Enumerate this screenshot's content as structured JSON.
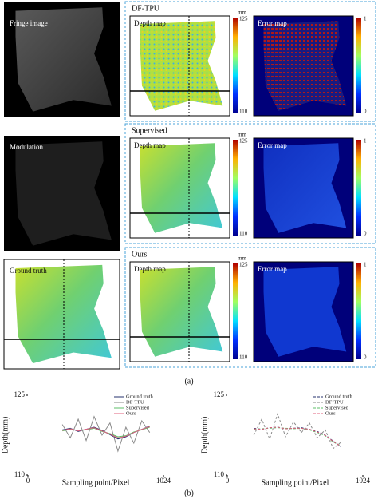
{
  "panel_a": {
    "caption": "(a)",
    "left_images": [
      {
        "label": "Fringe image"
      },
      {
        "label": "Modulation"
      },
      {
        "label": "Ground truth"
      }
    ],
    "methods": [
      {
        "title": "DF-TPU",
        "depth_label": "Depth map",
        "error_label": "Error map"
      },
      {
        "title": "Supervised",
        "depth_label": "Depth map",
        "error_label": "Error map"
      },
      {
        "title": "Ours",
        "depth_label": "Depth map",
        "error_label": "Error map"
      }
    ],
    "depth_colorbar": {
      "unit": "mm",
      "max": 125,
      "min": 110
    },
    "error_colorbar": {
      "max": 1,
      "min": 0
    }
  },
  "chart_data": [
    {
      "type": "line",
      "xlabel": "Sampling point/Pixel",
      "ylabel": "Depth(mm)",
      "x": [
        260,
        320,
        380,
        440,
        500,
        560,
        620,
        680,
        740,
        800,
        860,
        920
      ],
      "xlim": [
        0,
        1024
      ],
      "ylim": [
        110,
        125
      ],
      "xticks": [
        0,
        1024
      ],
      "yticks": [
        110,
        125
      ],
      "legend": "upper right",
      "series": [
        {
          "name": "Ground truth",
          "color": "#25306e",
          "linestyle": "solid",
          "values": [
            118.5,
            118.8,
            118.2,
            118.6,
            119.0,
            118.4,
            117.6,
            116.8,
            117.2,
            118.0,
            118.6,
            119.2
          ]
        },
        {
          "name": "DF-TPU",
          "color": "#8a8a8a",
          "linestyle": "solid",
          "values": [
            119.5,
            117.0,
            120.5,
            116.5,
            121.0,
            117.5,
            119.8,
            114.5,
            119.0,
            116.0,
            120.2,
            118.0
          ]
        },
        {
          "name": "Supervised",
          "color": "#5cbf6a",
          "linestyle": "solid",
          "values": [
            118.3,
            118.6,
            118.4,
            118.5,
            118.8,
            118.2,
            117.8,
            117.2,
            117.4,
            118.1,
            118.5,
            119.0
          ]
        },
        {
          "name": "Ours",
          "color": "#e0607e",
          "linestyle": "solid",
          "values": [
            118.4,
            118.7,
            118.3,
            118.6,
            118.9,
            118.3,
            117.7,
            117.0,
            117.3,
            118.0,
            118.6,
            119.1
          ]
        }
      ]
    },
    {
      "type": "line",
      "xlabel": "Sampling point/Pixel",
      "ylabel": "Depth(mm)",
      "x": [
        200,
        260,
        320,
        380,
        440,
        500,
        560,
        620,
        680,
        740,
        800,
        860
      ],
      "xlim": [
        0,
        1024
      ],
      "ylim": [
        110,
        125
      ],
      "xticks": [
        0,
        1024
      ],
      "yticks": [
        110,
        125
      ],
      "legend": "upper right",
      "series": [
        {
          "name": "Ground truth",
          "color": "#25306e",
          "linestyle": "dashed",
          "values": [
            118.8,
            118.6,
            118.9,
            119.0,
            118.7,
            118.8,
            118.9,
            118.6,
            118.2,
            117.5,
            116.4,
            115.3
          ]
        },
        {
          "name": "DF-TPU",
          "color": "#8a8a8a",
          "linestyle": "dashed",
          "values": [
            117.5,
            120.5,
            116.8,
            121.5,
            117.2,
            120.0,
            118.0,
            119.8,
            117.0,
            118.5,
            115.0,
            116.2
          ]
        },
        {
          "name": "Supervised",
          "color": "#5cbf6a",
          "linestyle": "dashed",
          "values": [
            118.6,
            118.7,
            118.8,
            118.9,
            118.8,
            118.7,
            118.8,
            118.5,
            118.0,
            117.4,
            116.2,
            115.5
          ]
        },
        {
          "name": "Ours",
          "color": "#e0607e",
          "linestyle": "dashed",
          "values": [
            118.7,
            118.6,
            118.9,
            119.0,
            118.7,
            118.8,
            118.8,
            118.6,
            118.1,
            117.5,
            116.3,
            115.4
          ]
        }
      ]
    }
  ],
  "caption_b": "(b)"
}
